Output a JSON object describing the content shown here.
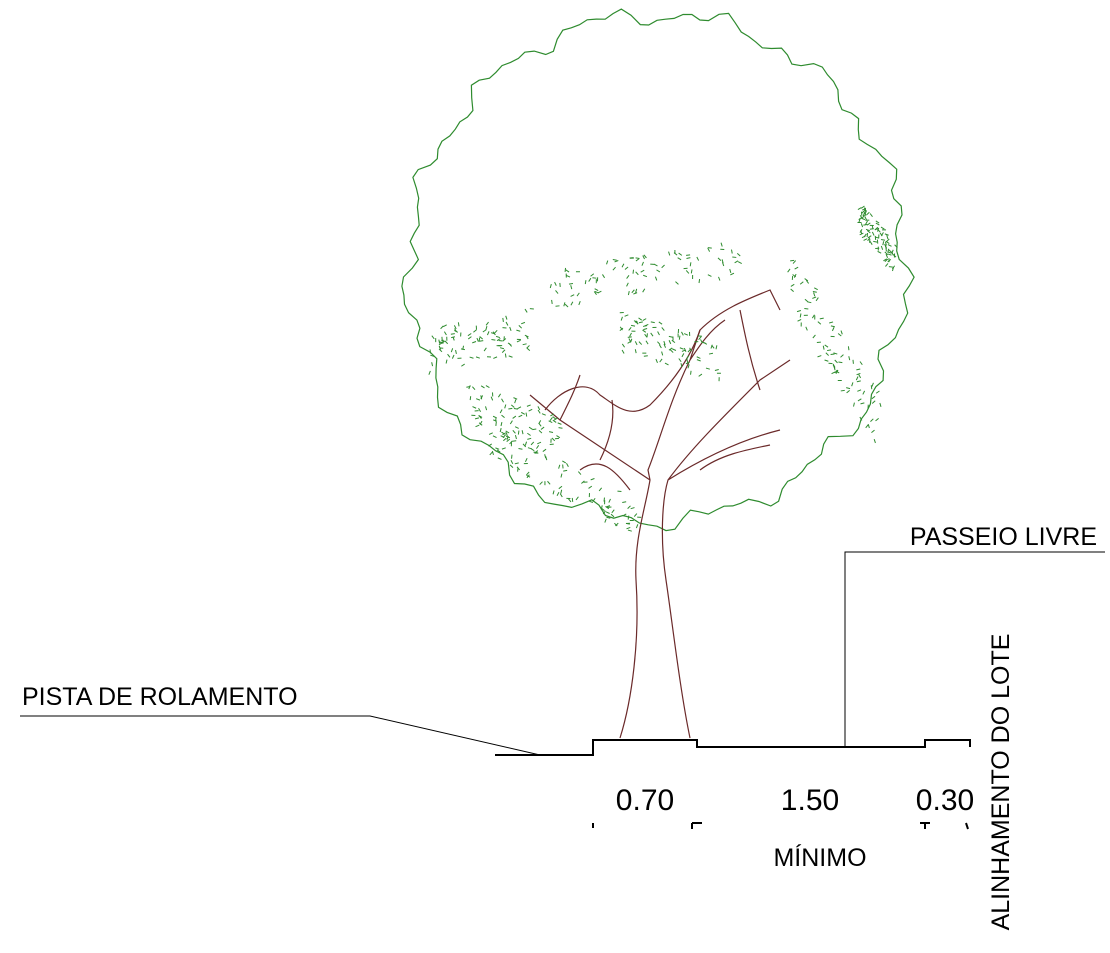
{
  "labels": {
    "sidewalk": "PASSEIO LIVRE",
    "road": "PISTA DE ROLAMENTO",
    "lot_line": "ALINHAMENTO DO LOTE"
  },
  "dimensions": [
    "0.70",
    "1.50",
    "0.30"
  ],
  "dimension_note": "MÍNIMO"
}
